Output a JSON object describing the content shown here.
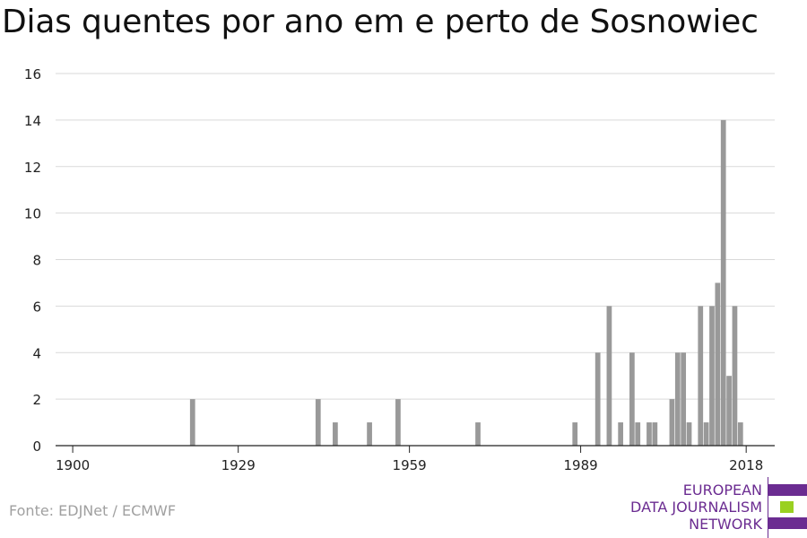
{
  "title": "Dias quentes por ano em e perto de Sosnowiec",
  "source": "Fonte: EDJNet / ECMWF",
  "logo": {
    "lines": [
      "EUROPEAN",
      "DATA JOURNALISM",
      "NETWORK"
    ],
    "colors": {
      "purple": "#6b2c91",
      "green": "#9ad021"
    }
  },
  "chart_data": {
    "type": "bar",
    "title": "Dias quentes por ano em e perto de Sosnowiec",
    "xlabel": "",
    "ylabel": "",
    "xlim": [
      1897,
      2023
    ],
    "ylim": [
      0,
      16
    ],
    "yticks": [
      0,
      2,
      4,
      6,
      8,
      10,
      12,
      14,
      16
    ],
    "xticks": [
      1900,
      1929,
      1959,
      1989,
      2018
    ],
    "grid": true,
    "bar_color": "#999999",
    "series": [
      {
        "x": [
          1921,
          1943,
          1946,
          1952,
          1957,
          1971,
          1988,
          1992,
          1994,
          1996,
          1998,
          1999,
          2001,
          2002,
          2005,
          2006,
          2007,
          2008,
          2010,
          2011,
          2012,
          2013,
          2014,
          2015,
          2016,
          2017,
          2018
        ],
        "values": [
          2,
          2,
          1,
          1,
          2,
          1,
          1,
          4,
          6,
          1,
          4,
          1,
          1,
          1,
          2,
          4,
          4,
          1,
          6,
          1,
          6,
          7,
          14,
          3,
          6,
          1,
          0
        ]
      }
    ]
  }
}
